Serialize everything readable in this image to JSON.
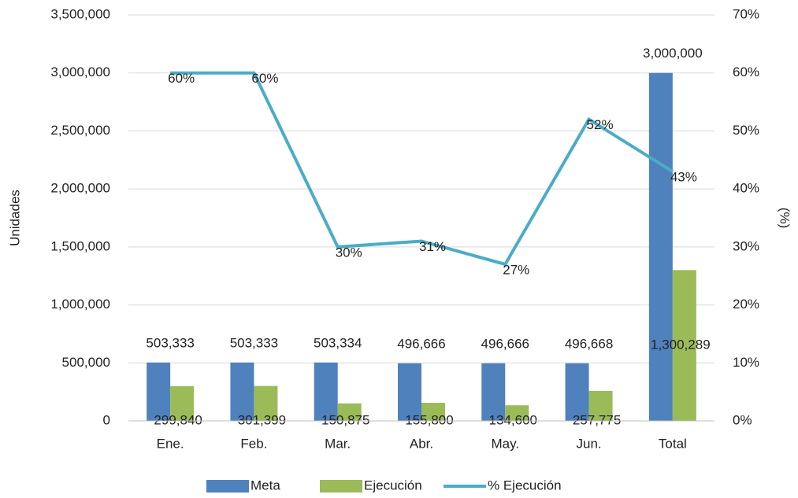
{
  "chart_data": {
    "type": "bar-line",
    "categories": [
      "Ene.",
      "Feb.",
      "Mar.",
      "Abr.",
      "May.",
      "Jun.",
      "Total"
    ],
    "series": [
      {
        "name": "Meta",
        "color": "#4f81bd",
        "values": [
          503333,
          503333,
          503334,
          496666,
          496666,
          496668,
          3000000
        ],
        "value_labels": [
          "503,333",
          "503,333",
          "503,334",
          "496,666",
          "496,666",
          "496,668",
          "3,000,000"
        ]
      },
      {
        "name": "Ejecución",
        "color": "#9bbb59",
        "values": [
          299840,
          301399,
          150875,
          155800,
          134600,
          257775,
          1300289
        ],
        "value_labels": [
          "299,840",
          "301,399",
          "150,875",
          "155,800",
          "134,600",
          "257,775",
          "1,300,289"
        ]
      },
      {
        "name": "% Ejecución",
        "color": "#4bacc6",
        "type": "line",
        "axis": "y2",
        "values": [
          60,
          60,
          30,
          31,
          27,
          52,
          43
        ],
        "value_labels": [
          "60%",
          "60%",
          "30%",
          "31%",
          "27%",
          "52%",
          "43%"
        ]
      }
    ],
    "ylabel": "Unidades",
    "y2label": "(%)",
    "ylim": [
      0,
      3500000
    ],
    "yticks": [
      0,
      {
        "value": 500000,
        "label": "500,000"
      },
      {
        "value": 1000000,
        "label": "1,000,000"
      },
      {
        "value": 1500000,
        "label": "1,500,000"
      },
      {
        "value": 2000000,
        "label": "2,000,000"
      },
      {
        "value": 2500000,
        "label": "2,500,000"
      },
      {
        "value": 3000000,
        "label": "3,000,000"
      },
      {
        "value": 3500000,
        "label": "3,500,000"
      }
    ],
    "y2lim": [
      0,
      70
    ],
    "y2ticks": [
      {
        "value": 0,
        "label": "0%"
      },
      {
        "value": 10,
        "label": "10%"
      },
      {
        "value": 20,
        "label": "20%"
      },
      {
        "value": 30,
        "label": "30%"
      },
      {
        "value": 40,
        "label": "40%"
      },
      {
        "value": 50,
        "label": "50%"
      },
      {
        "value": 60,
        "label": "60%"
      },
      {
        "value": 70,
        "label": "70%"
      }
    ],
    "grid": true,
    "legend": "bottom"
  }
}
